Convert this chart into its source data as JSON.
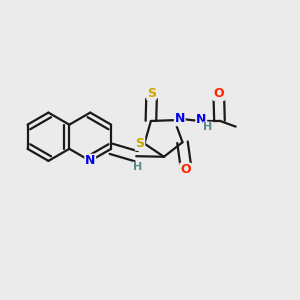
{
  "background_color": "#ebebeb",
  "bond_color": "#1a1a1a",
  "atom_colors": {
    "S": "#c8a800",
    "N": "#0000ee",
    "O": "#ff2200",
    "H": "#5a8a8a",
    "C": "#1a1a1a"
  },
  "figsize": [
    3.0,
    3.0
  ],
  "dpi": 100,
  "bond_lw": 1.6,
  "double_sep": 0.018,
  "font_size": 9
}
